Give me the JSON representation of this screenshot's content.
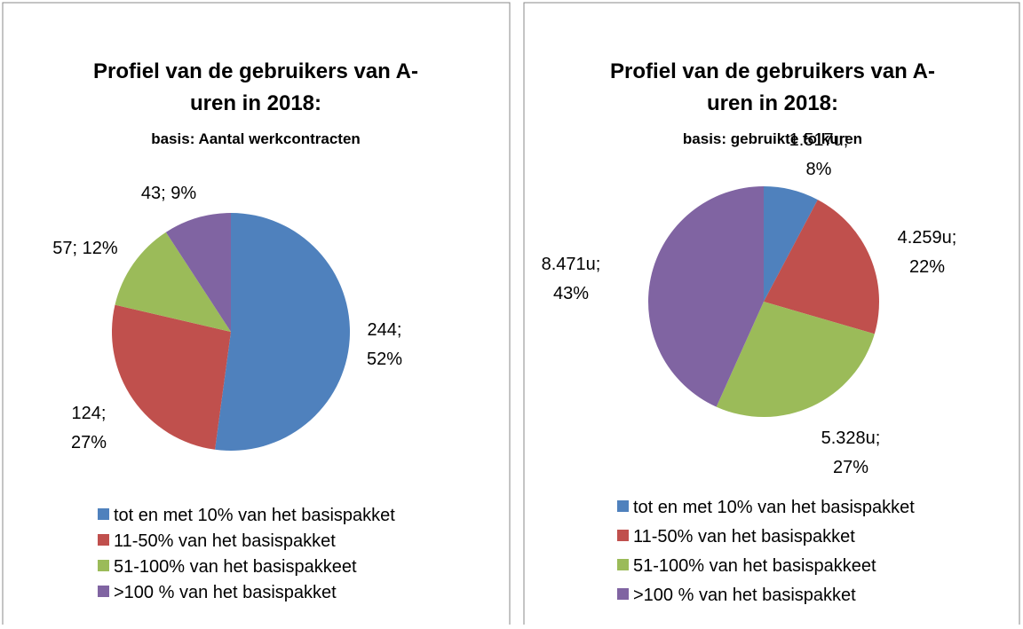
{
  "chart_data": [
    {
      "type": "pie",
      "title": "Profiel van de gebruikers van A-uren in 2018:",
      "subtitle": "basis: Aantal werkcontracten",
      "categories": [
        "tot en met 10% van het basispakket",
        "11-50% van het basispakket",
        "51-100% van het basispakkeet",
        ">100 % van het basispakket"
      ],
      "values": [
        244,
        124,
        57,
        43
      ],
      "value_labels": [
        "244; 52%",
        "124; 27%",
        "57; 12%",
        "43; 9%"
      ],
      "colors": [
        "#4f81bd",
        "#c0504d",
        "#9bbb59",
        "#8064a2"
      ]
    },
    {
      "type": "pie",
      "title": "Profiel van de gebruikers van A-uren in 2018:",
      "subtitle": "basis: gebruikte tolkuren",
      "categories": [
        "tot en met 10% van het basispakket",
        "11-50% van het basispakket",
        "51-100% van het basispakkeet",
        ">100 % van het basispakket"
      ],
      "values": [
        1517,
        4259,
        5328,
        8471
      ],
      "value_labels": [
        "1.517u; 8%",
        "4.259u; 22%",
        "5.328u; 27%",
        "8.471u; 43%"
      ],
      "colors": [
        "#4f81bd",
        "#c0504d",
        "#9bbb59",
        "#8064a2"
      ]
    }
  ]
}
